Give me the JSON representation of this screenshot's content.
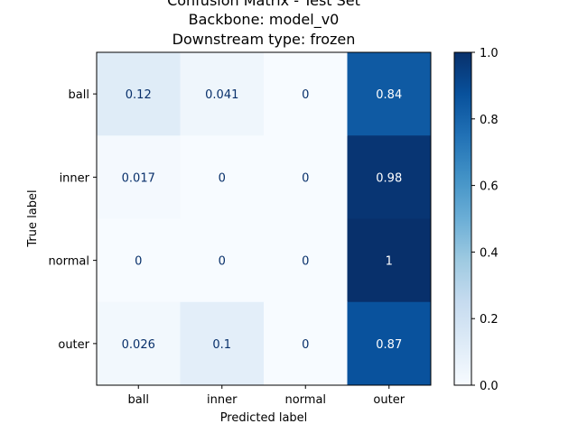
{
  "chart_data": {
    "type": "heatmap",
    "title_lines": [
      "Confusion Matrix - Test Set",
      "Backbone: model_v0",
      "Downstream type: frozen"
    ],
    "xlabel": "Predicted label",
    "ylabel": "True label",
    "x_categories": [
      "ball",
      "inner",
      "normal",
      "outer"
    ],
    "y_categories": [
      "ball",
      "inner",
      "normal",
      "outer"
    ],
    "values": [
      [
        0.12,
        0.041,
        0,
        0.84
      ],
      [
        0.017,
        0,
        0,
        0.98
      ],
      [
        0,
        0,
        0,
        1
      ],
      [
        0.026,
        0.1,
        0,
        0.87
      ]
    ],
    "cell_labels": [
      [
        "0.12",
        "0.041",
        "0",
        "0.84"
      ],
      [
        "0.017",
        "0",
        "0",
        "0.98"
      ],
      [
        "0",
        "0",
        "0",
        "1"
      ],
      [
        "0.026",
        "0.1",
        "0",
        "0.87"
      ]
    ],
    "colormap": "Blues",
    "colorbar": {
      "range": [
        0.0,
        1.0
      ],
      "ticks": [
        0.0,
        0.2,
        0.4,
        0.6,
        0.8,
        1.0
      ],
      "tick_labels": [
        "0.0",
        "0.2",
        "0.4",
        "0.6",
        "0.8",
        "1.0"
      ]
    },
    "grid": false
  }
}
